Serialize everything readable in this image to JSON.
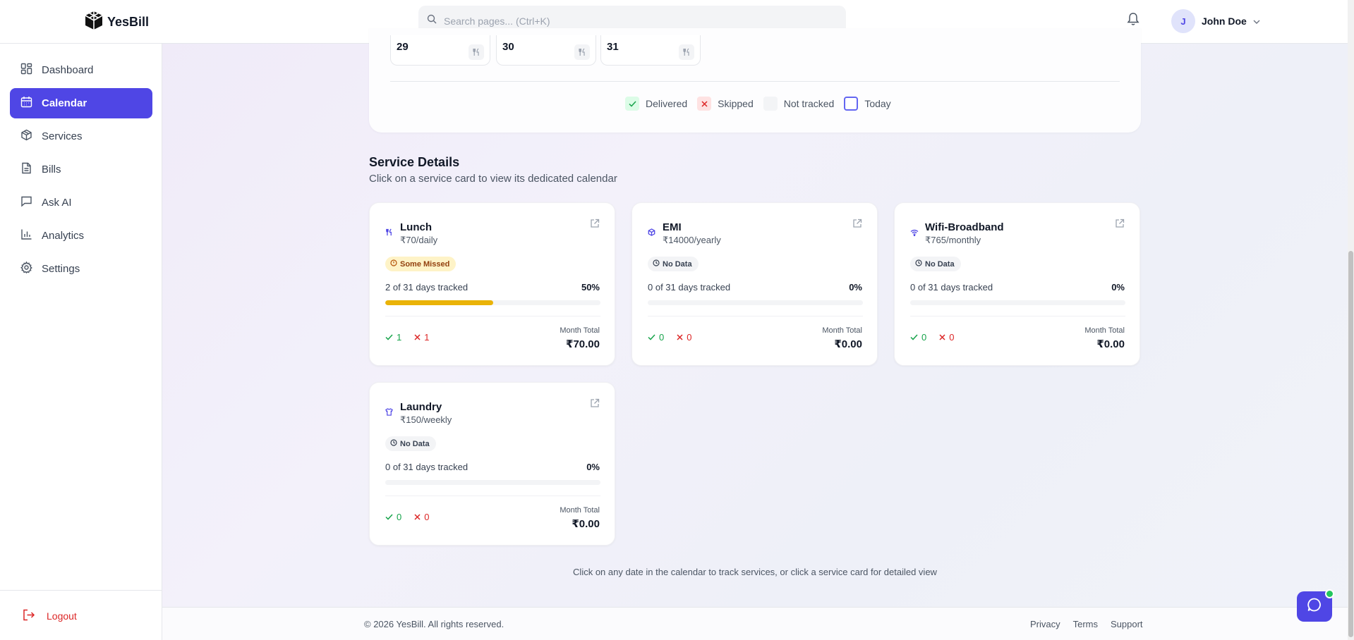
{
  "app": {
    "brand": "YesBill"
  },
  "header": {
    "search_placeholder": "Search pages... (Ctrl+K)",
    "user": {
      "initial": "J",
      "name": "John Doe"
    }
  },
  "sidebar": {
    "items": [
      {
        "label": "Dashboard",
        "icon": "dashboard-icon"
      },
      {
        "label": "Calendar",
        "icon": "calendar-icon",
        "active": true
      },
      {
        "label": "Services",
        "icon": "box-icon"
      },
      {
        "label": "Bills",
        "icon": "file-icon"
      },
      {
        "label": "Ask AI",
        "icon": "message-icon"
      },
      {
        "label": "Analytics",
        "icon": "bar-chart-icon"
      },
      {
        "label": "Settings",
        "icon": "gear-icon"
      }
    ],
    "logout": "Logout"
  },
  "calendar": {
    "days": [
      "29",
      "30",
      "31"
    ],
    "legend": {
      "delivered": "Delivered",
      "skipped": "Skipped",
      "not_tracked": "Not tracked",
      "today": "Today"
    }
  },
  "service_details": {
    "title": "Service Details",
    "subtitle": "Click on a service card to view its dedicated calendar",
    "month_total_label": "Month Total",
    "cards": [
      {
        "name": "Lunch",
        "rate": "₹70/daily",
        "icon": "utensils-icon",
        "status": "Some Missed",
        "tracked": "2 of 31 days tracked",
        "percent": "50%",
        "progress": 0.5,
        "delivered": "1",
        "skipped": "1",
        "total": "₹70.00"
      },
      {
        "name": "EMI",
        "rate": "₹14000/yearly",
        "icon": "box-icon",
        "status": "No Data",
        "tracked": "0 of 31 days tracked",
        "percent": "0%",
        "progress": 0,
        "delivered": "0",
        "skipped": "0",
        "total": "₹0.00"
      },
      {
        "name": "Wifi-Broadband",
        "rate": "₹765/monthly",
        "icon": "wifi-icon",
        "status": "No Data",
        "tracked": "0 of 31 days tracked",
        "percent": "0%",
        "progress": 0,
        "delivered": "0",
        "skipped": "0",
        "total": "₹0.00"
      },
      {
        "name": "Laundry",
        "rate": "₹150/weekly",
        "icon": "shirt-icon",
        "status": "No Data",
        "tracked": "0 of 31 days tracked",
        "percent": "0%",
        "progress": 0,
        "delivered": "0",
        "skipped": "0",
        "total": "₹0.00"
      }
    ]
  },
  "hint": "Click on any date in the calendar to track services, or click a service card for detailed view",
  "footer": {
    "copyright": "© 2026 YesBill. All rights reserved.",
    "links": [
      "Privacy",
      "Terms",
      "Support"
    ]
  },
  "colors": {
    "accent": "#4f46e5",
    "progress": "#eab308",
    "delivered": "#16a34a",
    "skipped": "#dc2626"
  }
}
